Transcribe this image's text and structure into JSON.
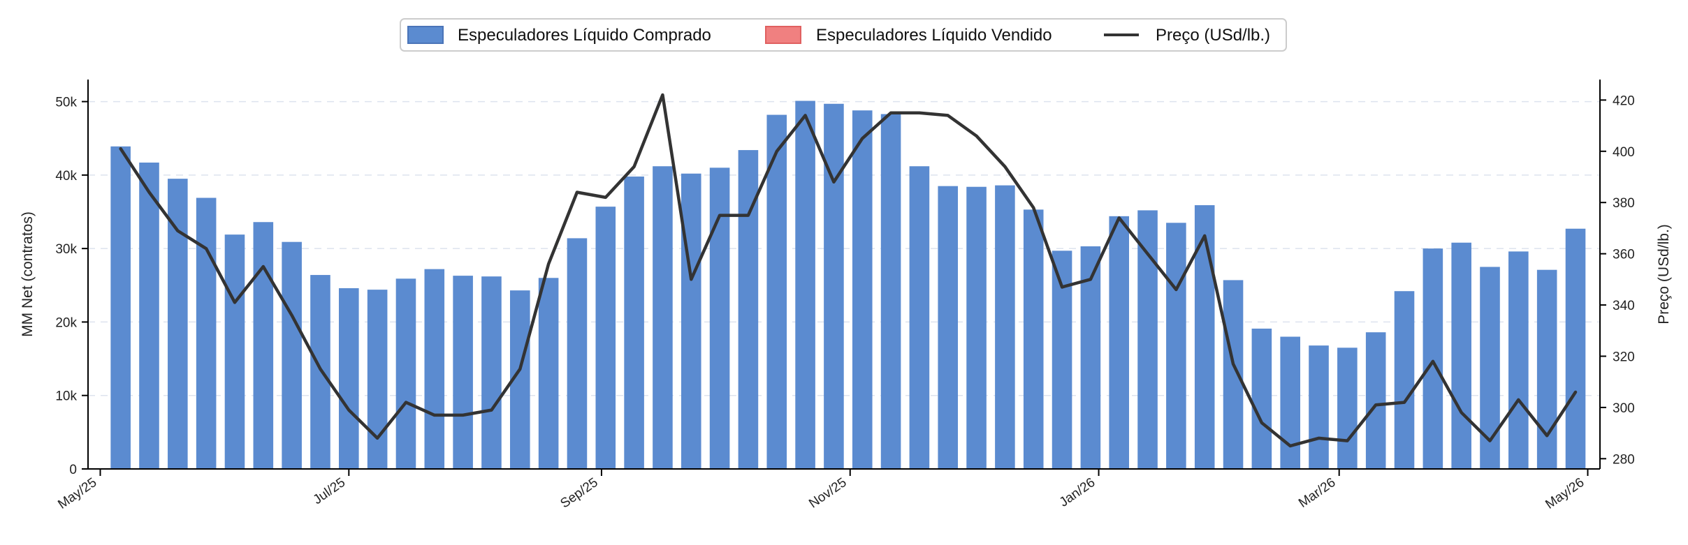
{
  "chart_data": {
    "type": "bar",
    "bar_color": "#5b8bd0",
    "bar_edge_color": "#4a74b8",
    "negative_color": "#f08080",
    "line_color": "#333333",
    "legend": {
      "placement": "top-center",
      "entries": [
        {
          "label": "Especuladores Líquido Comprado",
          "kind": "bar-positive"
        },
        {
          "label": "Especuladores Líquido Vendido",
          "kind": "bar-negative"
        },
        {
          "label": "Preço (USd/lb.)",
          "kind": "line"
        }
      ]
    },
    "ylabel_left": "MM Net (contratos)",
    "ylabel_right": "Preço (USd/lb.)",
    "ylim_left": [
      0,
      53000
    ],
    "ylim_right": [
      276,
      428
    ],
    "yticks_left": [
      {
        "value": 0,
        "label": "0"
      },
      {
        "value": 10000,
        "label": "10k"
      },
      {
        "value": 20000,
        "label": "20k"
      },
      {
        "value": 30000,
        "label": "30k"
      },
      {
        "value": 40000,
        "label": "40k"
      },
      {
        "value": 50000,
        "label": "50k"
      }
    ],
    "yticks_right": [
      {
        "value": 280,
        "label": "280"
      },
      {
        "value": 300,
        "label": "300"
      },
      {
        "value": 320,
        "label": "320"
      },
      {
        "value": 340,
        "label": "340"
      },
      {
        "value": 360,
        "label": "360"
      },
      {
        "value": 380,
        "label": "380"
      },
      {
        "value": 400,
        "label": "400"
      },
      {
        "value": 420,
        "label": "420"
      }
    ],
    "xlim": [
      "2025-04-28",
      "2026-05-04"
    ],
    "xticks": [
      {
        "date": "2025-05-01",
        "label": "May/25"
      },
      {
        "date": "2025-07-01",
        "label": "Jul/25"
      },
      {
        "date": "2025-09-01",
        "label": "Sep/25"
      },
      {
        "date": "2025-11-01",
        "label": "Nov/25"
      },
      {
        "date": "2026-01-01",
        "label": "Jan/26"
      },
      {
        "date": "2026-03-01",
        "label": "Mar/26"
      },
      {
        "date": "2026-05-01",
        "label": "May/26"
      }
    ],
    "grid": "horizontal-dashed",
    "dates": [
      "2025-05-06",
      "2025-05-13",
      "2025-05-20",
      "2025-05-27",
      "2025-06-03",
      "2025-06-10",
      "2025-06-17",
      "2025-06-24",
      "2025-07-01",
      "2025-07-08",
      "2025-07-15",
      "2025-07-22",
      "2025-07-29",
      "2025-08-05",
      "2025-08-12",
      "2025-08-19",
      "2025-08-26",
      "2025-09-02",
      "2025-09-09",
      "2025-09-16",
      "2025-09-23",
      "2025-09-30",
      "2025-10-07",
      "2025-10-14",
      "2025-10-21",
      "2025-10-28",
      "2025-11-04",
      "2025-11-11",
      "2025-11-18",
      "2025-11-25",
      "2025-12-02",
      "2025-12-09",
      "2025-12-16",
      "2025-12-23",
      "2025-12-30",
      "2026-01-06",
      "2026-01-13",
      "2026-01-20",
      "2026-01-27",
      "2026-02-03",
      "2026-02-10",
      "2026-02-17",
      "2026-02-24",
      "2026-03-03",
      "2026-03-10",
      "2026-03-17",
      "2026-03-24",
      "2026-03-31",
      "2026-04-07",
      "2026-04-14",
      "2026-04-21",
      "2026-04-28"
    ],
    "series": [
      {
        "name": "Especuladores Líquido Comprado",
        "type": "bar",
        "values": [
          43900,
          41700,
          39500,
          36900,
          31900,
          33600,
          30900,
          26400,
          24600,
          24400,
          25900,
          27200,
          26300,
          26200,
          24300,
          26000,
          31400,
          35700,
          39800,
          41200,
          40200,
          41000,
          43400,
          48200,
          50100,
          49700,
          48800,
          48300,
          41200,
          38500,
          38400,
          38600,
          35300,
          29700,
          30300,
          34400,
          35200,
          33500,
          35900,
          25700,
          19100,
          18000,
          16800,
          16500,
          18600,
          24200,
          30000,
          30800,
          27500,
          29600,
          27100,
          32700
        ]
      },
      {
        "name": "Preço (USd/lb.)",
        "type": "line",
        "axis": "right",
        "values": [
          401,
          384,
          369,
          362,
          341,
          355,
          336,
          315,
          299,
          288,
          302,
          297,
          297,
          299,
          315,
          356,
          384,
          382,
          394,
          422,
          350,
          375,
          375,
          400,
          414,
          388,
          405,
          415,
          415,
          414,
          406,
          394,
          378,
          347,
          350,
          374,
          360,
          346,
          367,
          317,
          294,
          285,
          288,
          287,
          301,
          302,
          318,
          298,
          287,
          303,
          289,
          306
        ]
      }
    ]
  }
}
